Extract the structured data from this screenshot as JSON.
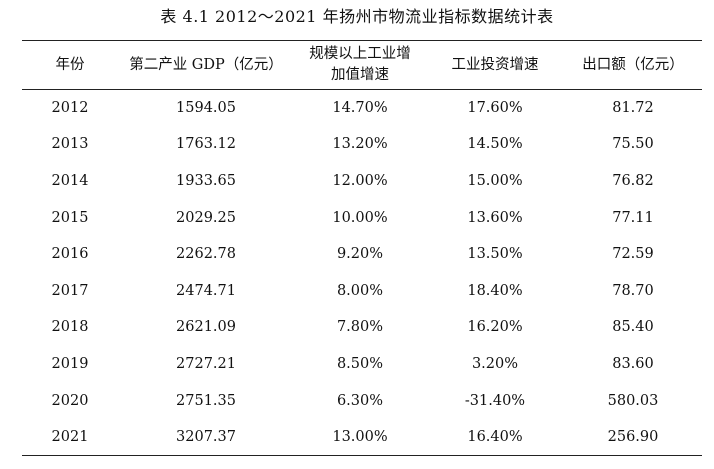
{
  "caption": "表 4.1   2012～2021 年扬州市物流业指标数据统计表",
  "headers": {
    "year": "年份",
    "gdp": "第二产业 GDP（亿元）",
    "industry_line1": "规模以上工业增",
    "industry_line2": "加值增速",
    "investment": "工业投资增速",
    "export": "出口额（亿元）"
  },
  "rows": [
    {
      "year": "2012",
      "gdp": "1594.05",
      "industry": "14.70%",
      "investment": "17.60%",
      "export": "81.72"
    },
    {
      "year": "2013",
      "gdp": "1763.12",
      "industry": "13.20%",
      "investment": "14.50%",
      "export": "75.50"
    },
    {
      "year": "2014",
      "gdp": "1933.65",
      "industry": "12.00%",
      "investment": "15.00%",
      "export": "76.82"
    },
    {
      "year": "2015",
      "gdp": "2029.25",
      "industry": "10.00%",
      "investment": "13.60%",
      "export": "77.11"
    },
    {
      "year": "2016",
      "gdp": "2262.78",
      "industry": "9.20%",
      "investment": "13.50%",
      "export": "72.59"
    },
    {
      "year": "2017",
      "gdp": "2474.71",
      "industry": "8.00%",
      "investment": "18.40%",
      "export": "78.70"
    },
    {
      "year": "2018",
      "gdp": "2621.09",
      "industry": "7.80%",
      "investment": "16.20%",
      "export": "85.40"
    },
    {
      "year": "2019",
      "gdp": "2727.21",
      "industry": "8.50%",
      "investment": "3.20%",
      "export": "83.60"
    },
    {
      "year": "2020",
      "gdp": "2751.35",
      "industry": "6.30%",
      "investment": "-31.40%",
      "export": "580.03"
    },
    {
      "year": "2021",
      "gdp": "3207.37",
      "industry": "13.00%",
      "investment": "16.40%",
      "export": "256.90"
    }
  ]
}
